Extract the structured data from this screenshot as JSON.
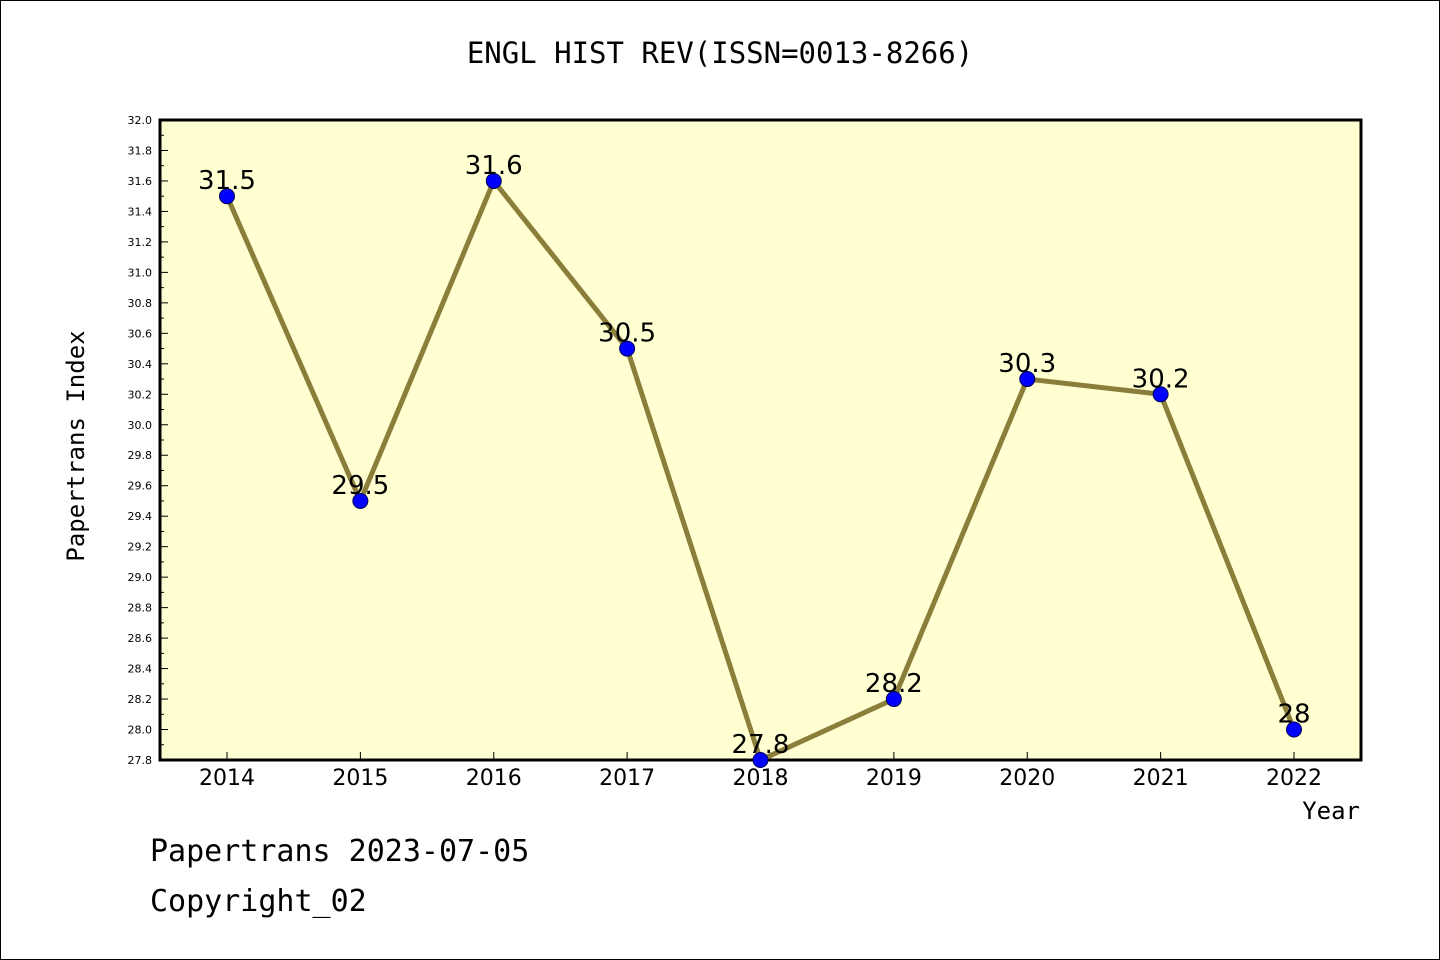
{
  "chart_data": {
    "type": "line",
    "title": "ENGL HIST REV(ISSN=0013-8266)",
    "xlabel": "Year",
    "ylabel": "Papertrans Index",
    "categories": [
      "2014",
      "2015",
      "2016",
      "2017",
      "2018",
      "2019",
      "2020",
      "2021",
      "2022"
    ],
    "values": [
      31.5,
      29.5,
      31.6,
      30.5,
      27.8,
      28.2,
      30.3,
      30.2,
      28.0
    ],
    "data_labels": [
      "31.5",
      "29.5",
      "31.6",
      "30.5",
      "27.8",
      "28.2",
      "30.3",
      "30.2",
      "28"
    ],
    "ylim": [
      27.8,
      32.0
    ],
    "y_ticks": [
      "27.8",
      "28.0",
      "28.2",
      "28.4",
      "28.6",
      "28.8",
      "29.0",
      "29.2",
      "29.4",
      "29.6",
      "29.8",
      "30.0",
      "30.2",
      "30.4",
      "30.6",
      "30.8",
      "31.0",
      "31.2",
      "31.4",
      "31.6",
      "31.8",
      "32.0"
    ],
    "grid": false,
    "colors": {
      "line": "#8b7d3a",
      "marker": "#0000ff",
      "plot_bg": "#ffffd2"
    }
  },
  "footer": {
    "line1": "Papertrans 2023-07-05",
    "line2": "Copyright_02"
  }
}
